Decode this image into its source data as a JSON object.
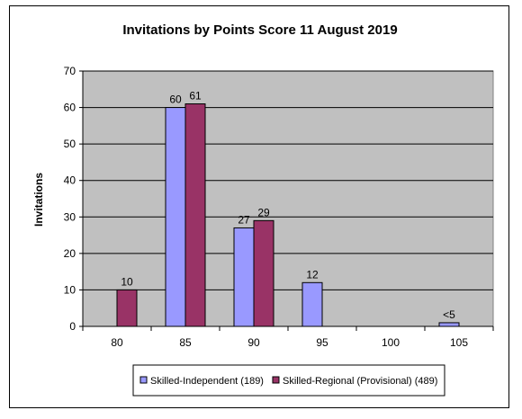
{
  "chart_data": {
    "type": "bar",
    "title": "Invitations by Points Score 11 August 2019",
    "xlabel": "",
    "ylabel": "Invitations",
    "categories": [
      "80",
      "85",
      "90",
      "95",
      "100",
      "105"
    ],
    "ylim": [
      0,
      70
    ],
    "yticks": [
      0,
      10,
      20,
      30,
      40,
      50,
      60,
      70
    ],
    "grid": true,
    "legend": "bottom",
    "series": [
      {
        "name": "Skilled-Independent (189)",
        "values": [
          null,
          60,
          27,
          12,
          null,
          1
        ],
        "labels": [
          "",
          "60",
          "27",
          "12",
          "",
          "<5"
        ],
        "color": "#9999ff"
      },
      {
        "name": "Skilled-Regional (Provisional) (489)",
        "values": [
          10,
          61,
          29,
          null,
          null,
          null
        ],
        "labels": [
          "10",
          "61",
          "29",
          "",
          "",
          ""
        ],
        "color": "#993366"
      }
    ],
    "plot_background": "#c0c0c0"
  }
}
